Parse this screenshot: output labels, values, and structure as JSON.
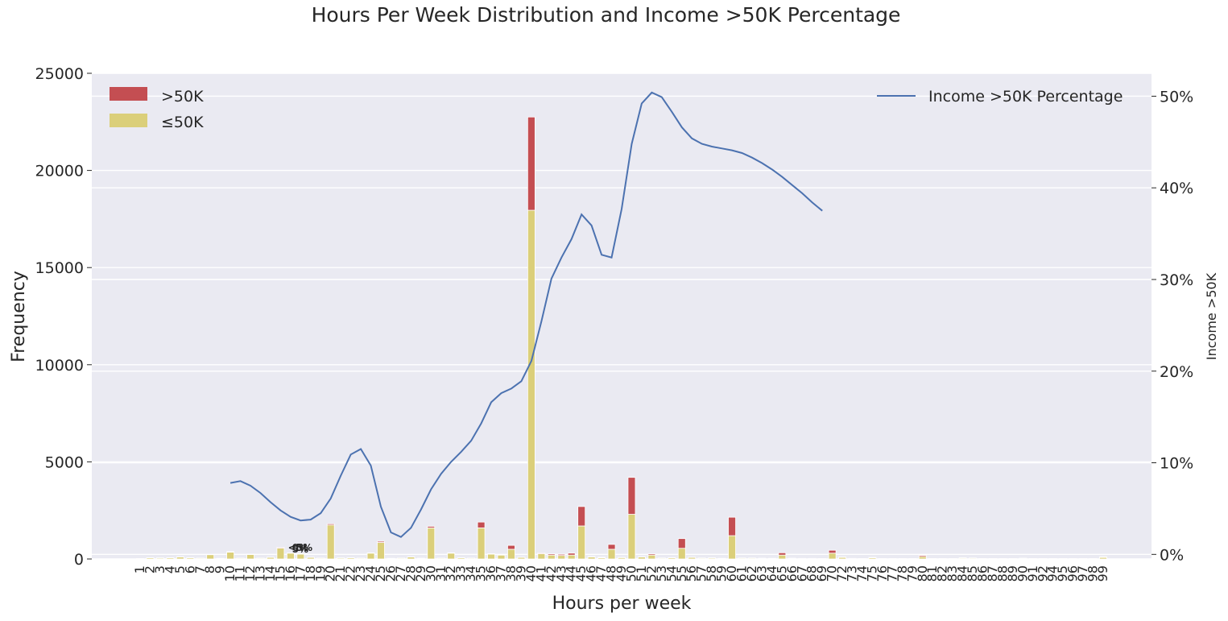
{
  "chart_data": {
    "type": "bar",
    "title": "Hours Per Week Distribution and Income >50K Percentage",
    "xlabel": "Hours per week",
    "ylabel": "Frequency",
    "y2label": "Income >50K",
    "ylim": [
      0,
      25000
    ],
    "y2lim": [
      -0.5,
      52.5
    ],
    "yticks": [
      "0",
      "5000",
      "10000",
      "15000",
      "20000",
      "25000"
    ],
    "y2ticks": [
      "0%",
      "10%",
      "20%",
      "30%",
      "40%",
      "50%"
    ],
    "grid": true,
    "legend": {
      "bars_position": "top-left",
      "line_position": "top-right"
    },
    "categories": [
      "1",
      "2",
      "3",
      "4",
      "5",
      "6",
      "7",
      "8",
      "9",
      "10",
      "11",
      "12",
      "13",
      "14",
      "15",
      "16",
      "17",
      "18",
      "19",
      "20",
      "21",
      "22",
      "23",
      "24",
      "25",
      "26",
      "27",
      "28",
      "29",
      "30",
      "31",
      "32",
      "33",
      "34",
      "35",
      "36",
      "37",
      "38",
      "39",
      "40",
      "41",
      "42",
      "43",
      "44",
      "45",
      "46",
      "47",
      "48",
      "49",
      "50",
      "51",
      "52",
      "53",
      "54",
      "55",
      "56",
      "57",
      "58",
      "59",
      "60",
      "61",
      "62",
      "63",
      "64",
      "65",
      "66",
      "67",
      "68",
      "69",
      "70",
      "72",
      "73",
      "74",
      "75",
      "76",
      "77",
      "78",
      "79",
      "80",
      "81",
      "82",
      "83",
      "84",
      "85",
      "86",
      "87",
      "88",
      "89",
      "90",
      "91",
      "92",
      "94",
      "95",
      "96",
      "97",
      "98",
      "99"
    ],
    "series": [
      {
        "name": ">50K",
        "kind": "bar",
        "color": "#c44e52",
        "values": [
          3,
          2,
          4,
          5,
          10,
          5,
          3,
          15,
          2,
          30,
          5,
          15,
          5,
          10,
          40,
          5,
          20,
          10,
          5,
          60,
          5,
          5,
          5,
          15,
          60,
          5,
          5,
          5,
          10,
          80,
          5,
          20,
          5,
          5,
          300,
          20,
          20,
          200,
          10,
          4800,
          40,
          60,
          60,
          100,
          1000,
          20,
          30,
          250,
          10,
          1900,
          10,
          60,
          10,
          10,
          500,
          10,
          10,
          10,
          5,
          950,
          10,
          10,
          10,
          5,
          120,
          10,
          10,
          10,
          5,
          150,
          20,
          10,
          5,
          20,
          5,
          5,
          5,
          5,
          60,
          5,
          5,
          5,
          20,
          10,
          5,
          5,
          5,
          5,
          20,
          5,
          5,
          5,
          5,
          5,
          5,
          5,
          30
        ]
      },
      {
        "name": "≤50K",
        "kind": "bar",
        "color": "#dbcf7a",
        "values": [
          20,
          60,
          50,
          60,
          100,
          60,
          40,
          220,
          30,
          350,
          40,
          230,
          40,
          80,
          560,
          300,
          250,
          80,
          40,
          1750,
          50,
          60,
          40,
          300,
          850,
          30,
          40,
          100,
          30,
          1600,
          40,
          300,
          60,
          40,
          1600,
          250,
          200,
          500,
          80,
          17950,
          270,
          200,
          180,
          200,
          1700,
          100,
          60,
          500,
          70,
          2300,
          100,
          200,
          40,
          60,
          550,
          80,
          40,
          50,
          30,
          1200,
          40,
          40,
          30,
          30,
          200,
          30,
          20,
          20,
          20,
          300,
          80,
          20,
          20,
          60,
          20,
          20,
          20,
          20,
          120,
          20,
          20,
          20,
          40,
          40,
          20,
          20,
          20,
          20,
          20,
          20,
          20,
          20,
          20,
          20,
          20,
          20,
          80
        ]
      },
      {
        "name": "Income >50K Percentage",
        "kind": "line",
        "color": "#4c72b0",
        "axis": "right",
        "x": [
          "10",
          "11",
          "12",
          "13",
          "14",
          "15",
          "16",
          "17",
          "18",
          "19",
          "20",
          "21",
          "22",
          "23",
          "24",
          "25",
          "26",
          "27",
          "28",
          "29",
          "30",
          "31",
          "32",
          "33",
          "34",
          "35",
          "36",
          "37",
          "38",
          "39",
          "40",
          "41",
          "42",
          "43",
          "44",
          "45",
          "46",
          "47",
          "48",
          "49",
          "50",
          "51",
          "52",
          "53",
          "54",
          "55",
          "56",
          "57",
          "58",
          "59",
          "60",
          "61",
          "62",
          "63",
          "64",
          "65",
          "66",
          "67",
          "68",
          "69"
        ],
        "values": [
          7.8,
          8.0,
          7.5,
          6.7,
          5.7,
          4.8,
          4.1,
          3.7,
          3.8,
          4.5,
          6.1,
          8.6,
          10.9,
          11.5,
          9.7,
          5.2,
          2.4,
          1.9,
          2.9,
          4.9,
          7.1,
          8.8,
          10.1,
          11.2,
          12.4,
          14.3,
          16.6,
          17.6,
          18.1,
          18.9,
          21.1,
          25.4,
          30.1,
          32.4,
          34.4,
          37.1,
          35.9,
          32.7,
          32.4,
          37.7,
          44.8,
          49.2,
          50.4,
          49.9,
          48.3,
          46.6,
          45.4,
          44.8,
          44.5,
          44.3,
          44.1,
          43.8,
          43.3,
          42.7,
          42.0,
          41.2,
          40.3,
          39.4,
          38.4,
          37.5
        ]
      }
    ],
    "stray_labels": [
      "<5%",
      "5%",
      "0%"
    ]
  }
}
